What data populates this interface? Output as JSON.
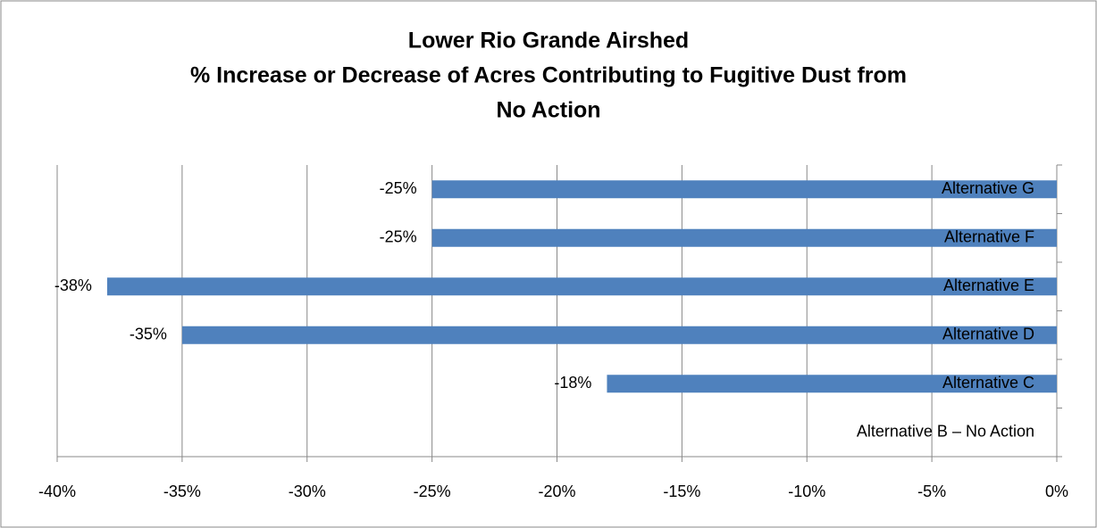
{
  "chart_data": {
    "type": "bar",
    "orientation": "horizontal",
    "title": [
      "Lower Rio Grande Airshed",
      "% Increase or Decrease of Acres Contributing to Fugitive Dust from",
      "No Action"
    ],
    "categories": [
      "Alternative B – No Action",
      "Alternative C",
      "Alternative D",
      "Alternative E",
      "Alternative F",
      "Alternative G"
    ],
    "values": [
      0,
      -18,
      -35,
      -38,
      -25,
      -25
    ],
    "value_labels": [
      null,
      "-18%",
      "-35%",
      "-38%",
      "-25%",
      "-25%"
    ],
    "color": "#4f81bd",
    "xlim": [
      -40,
      0
    ],
    "xticks": [
      {
        "value": -40,
        "label": "-40%"
      },
      {
        "value": -35,
        "label": "-35%"
      },
      {
        "value": -30,
        "label": "-30%"
      },
      {
        "value": -25,
        "label": "-25%"
      },
      {
        "value": -20,
        "label": "-20%"
      },
      {
        "value": -15,
        "label": "-15%"
      },
      {
        "value": -10,
        "label": "-10%"
      },
      {
        "value": -5,
        "label": "-5%"
      },
      {
        "value": 0,
        "label": "0%"
      }
    ],
    "grid": true
  }
}
